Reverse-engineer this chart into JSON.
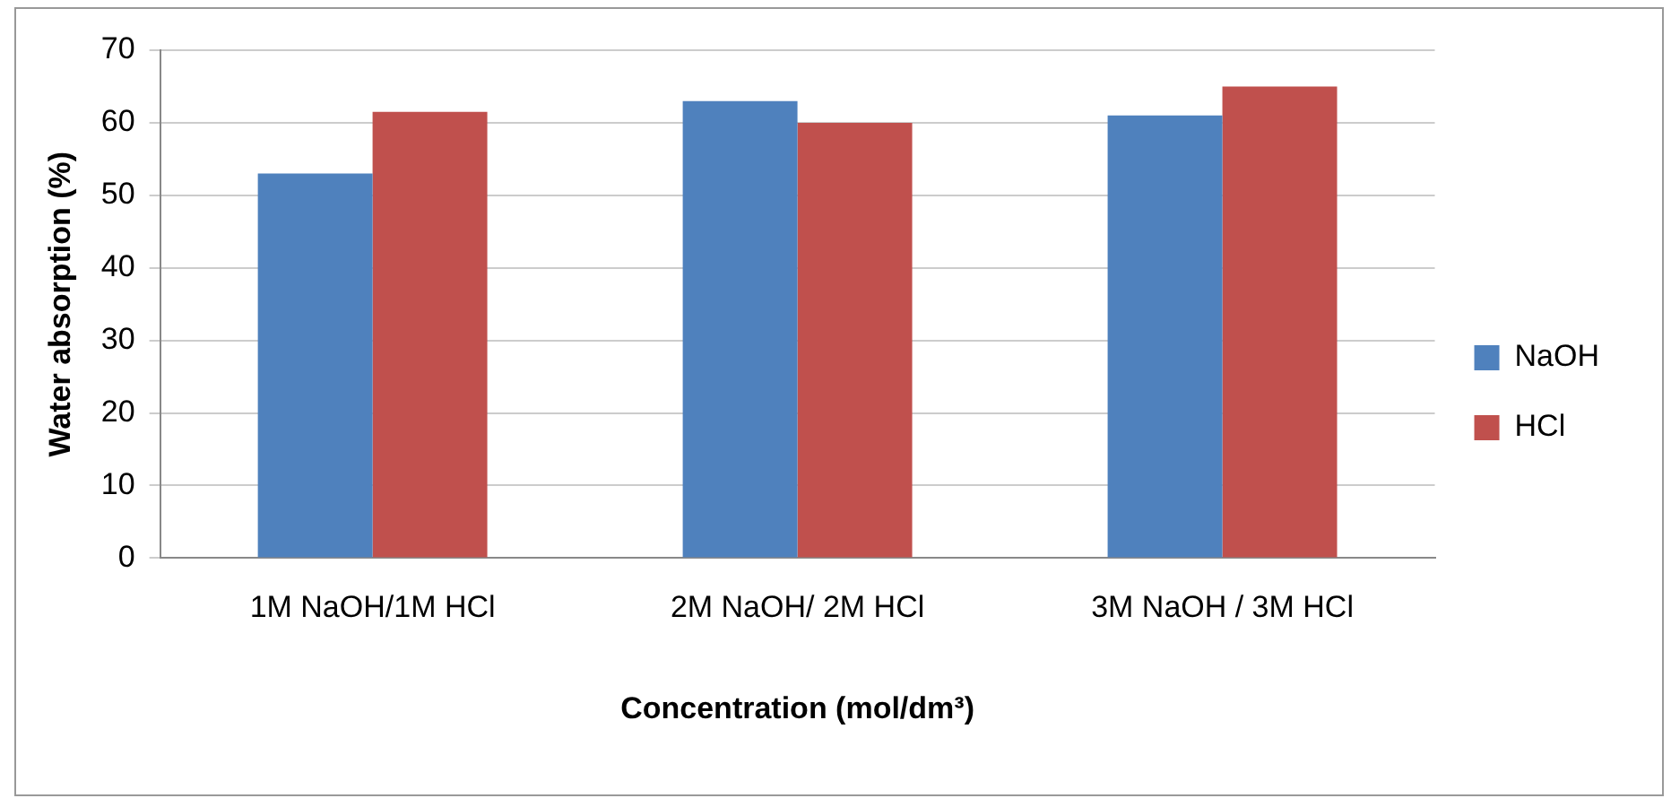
{
  "chart_data": {
    "type": "bar",
    "xlabel": "Concentration (mol/dm³)",
    "ylabel": "Water absorption (%)",
    "categories": [
      "1M NaOH/1M HCl",
      "2M NaOH/ 2M HCl",
      "3M NaOH / 3M HCl"
    ],
    "series": [
      {
        "name": "NaOH",
        "color": "#4f81bd",
        "values": [
          53,
          63,
          61
        ]
      },
      {
        "name": "HCl",
        "color": "#c0504d",
        "values": [
          61.5,
          60,
          65
        ]
      }
    ],
    "ylim": [
      0,
      70
    ],
    "yticks": [
      0,
      10,
      20,
      30,
      40,
      50,
      60,
      70
    ],
    "grid": "y",
    "legend": "right"
  }
}
